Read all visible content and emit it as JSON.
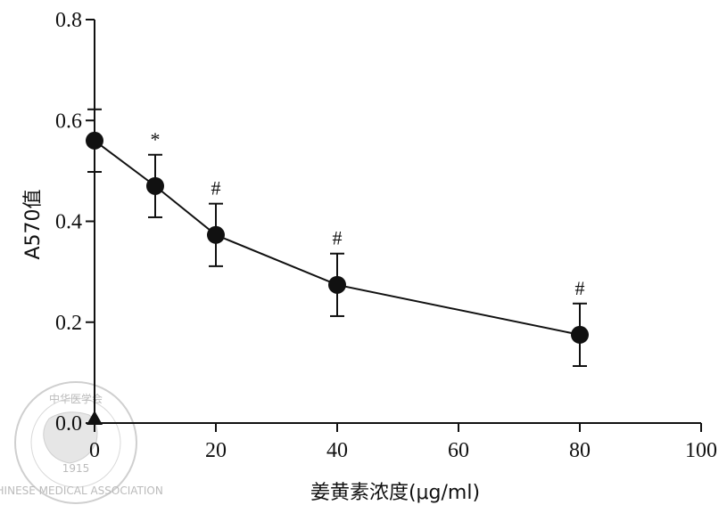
{
  "chart_data": {
    "type": "line",
    "title": "",
    "xlabel": "姜黄素浓度(μg/ml)",
    "ylabel": "A570值",
    "xlim": [
      0,
      100
    ],
    "ylim": [
      0,
      0.8
    ],
    "xticks": [
      "0",
      "20",
      "40",
      "60",
      "80",
      "100"
    ],
    "yticks": [
      "0.0",
      "0.2",
      "0.4",
      "0.6",
      "0.8"
    ],
    "series": [
      {
        "x": [
          0,
          10,
          20,
          40,
          80
        ],
        "y": [
          0.56,
          0.47,
          0.373,
          0.274,
          0.175
        ],
        "err": [
          0.062,
          0.062,
          0.062,
          0.062,
          0.062
        ],
        "marker": "circle-filled"
      }
    ],
    "annotations": [
      {
        "x": 10,
        "text": "*"
      },
      {
        "x": 20,
        "text": "#"
      },
      {
        "x": 40,
        "text": "#"
      },
      {
        "x": 80,
        "text": "#"
      }
    ],
    "extra_marker": {
      "x": 0,
      "y": 0,
      "shape": "triangle-filled"
    },
    "grid": false,
    "legend": "none"
  },
  "watermark": {
    "text_top": "中华医学会",
    "text_bottom": "CHINESE MEDICAL ASSOCIATION",
    "year": "1915"
  }
}
